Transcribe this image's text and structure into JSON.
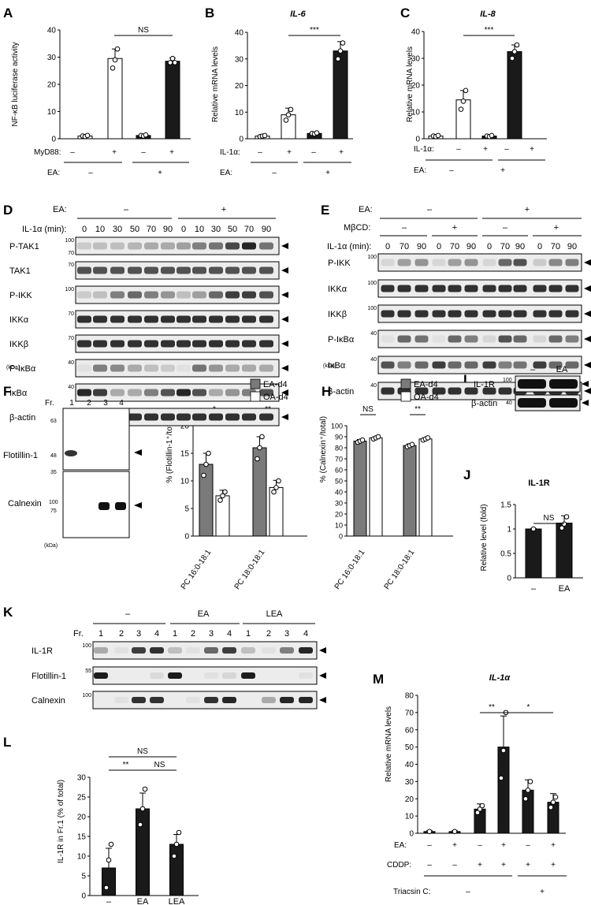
{
  "panelA": {
    "letter": "A",
    "ylabel": "NF-κB luciferase activity",
    "yticks": [
      "0",
      "10",
      "20",
      "30",
      "40"
    ],
    "sig": "NS",
    "row1_label": "MyD88:",
    "row1": [
      "–",
      "+",
      "–",
      "+"
    ],
    "row2_label": "EA:",
    "row2": [
      "–",
      "+"
    ]
  },
  "panelB": {
    "letter": "B",
    "title": "IL-6",
    "ylabel": "Relative mRNA levels",
    "yticks": [
      "0",
      "10",
      "20",
      "30",
      "40"
    ],
    "sig": "***",
    "row1_label": "IL-1α:",
    "row1": [
      "–",
      "+",
      "–",
      "+"
    ],
    "row2_label": "EA:",
    "row2": [
      "–",
      "+"
    ]
  },
  "panelC": {
    "letter": "C",
    "title": "IL-8",
    "ylabel": "Relative mRNA levels",
    "yticks": [
      "0",
      "10",
      "20",
      "30",
      "40"
    ],
    "sig": "***",
    "row1_label": "IL-1α:",
    "row1": [
      "–",
      "+",
      "–",
      "+"
    ],
    "row2_label": "EA:",
    "row2": [
      "–",
      "+"
    ]
  },
  "panelD": {
    "letter": "D",
    "ea_label": "EA:",
    "ea_groups": [
      "–",
      "+"
    ],
    "time_label": "IL-1α (min):",
    "times": [
      "0",
      "10",
      "30",
      "50",
      "70",
      "90",
      "0",
      "10",
      "30",
      "50",
      "70",
      "90"
    ],
    "rows": [
      "P-TAK1",
      "TAK1",
      "P-IKK",
      "IKKα",
      "IKKβ",
      "P-IκBα",
      "IκBα",
      "β-actin"
    ],
    "markers": [
      [
        "100",
        "70"
      ],
      [
        "70"
      ],
      [
        "100"
      ],
      [
        "70"
      ],
      [
        "70"
      ],
      [
        "40"
      ],
      [
        "40"
      ],
      [
        "40"
      ]
    ],
    "kda": "(kDa)"
  },
  "panelE": {
    "letter": "E",
    "ea_label": "EA:",
    "ea_groups": [
      "–",
      "+"
    ],
    "mbcd_label": "MβCD:",
    "mbcd_groups": [
      "–",
      "+",
      "–",
      "+"
    ],
    "time_label": "IL-1α (min):",
    "times": [
      "0",
      "70",
      "90",
      "0",
      "70",
      "90",
      "0",
      "70",
      "90",
      "0",
      "70",
      "90"
    ],
    "rows": [
      "P-IKK",
      "IKKα",
      "IKKβ",
      "P-IκBα",
      "IκBα",
      "β-actin"
    ],
    "markers": [
      [
        "100"
      ],
      [
        "100"
      ],
      [
        "100"
      ],
      [
        "40"
      ],
      [
        "40"
      ],
      [
        "40"
      ]
    ],
    "kda": "(kDa)"
  },
  "panelF": {
    "letter": "F",
    "fr_label": "Fr.",
    "fractions": [
      "1",
      "2",
      "3",
      "4"
    ],
    "rows": [
      "Flotillin-1",
      "Calnexin"
    ],
    "markers_top": [
      "63",
      "48",
      "35"
    ],
    "markers_bottom": [
      "100",
      "75"
    ],
    "kda": "(kDa)"
  },
  "panelG": {
    "letter": "G",
    "ylabel": "% (Flotillin-1⁺/total)",
    "yticks": [
      "0",
      "5",
      "10",
      "15",
      "20"
    ],
    "legend": [
      "EA-d4",
      "OA-d4"
    ],
    "categories": [
      "PC 16:0-18:1",
      "PC 18:0-18:1"
    ],
    "sigs": [
      "*",
      "**"
    ]
  },
  "panelH": {
    "letter": "H",
    "ylabel": "% (Calnexin⁺/total)",
    "yticks": [
      "0",
      "10",
      "20",
      "30",
      "40",
      "50",
      "60",
      "70",
      "80",
      "90",
      "100"
    ],
    "legend": [
      "EA-d4",
      "OA-d4"
    ],
    "categories": [
      "PC 16:0-18:1",
      "PC 18:0-18:1"
    ],
    "sigs": [
      "NS",
      "**"
    ]
  },
  "panelI": {
    "letter": "I",
    "lanes": [
      "–",
      "EA"
    ],
    "rows": [
      "IL-1R",
      "β-actin"
    ],
    "markers": [
      "100",
      "40"
    ]
  },
  "panelJ": {
    "letter": "J",
    "title": "IL-1R",
    "ylabel": "Relative level (fold)",
    "yticks": [
      "0",
      "0.5",
      "1",
      "1.5"
    ],
    "categories": [
      "–",
      "EA"
    ],
    "sig": "NS"
  },
  "panelK": {
    "letter": "K",
    "groups": [
      "–",
      "EA",
      "LEA"
    ],
    "fr_label": "Fr.",
    "fractions": [
      "1",
      "2",
      "3",
      "4",
      "1",
      "2",
      "3",
      "4",
      "1",
      "2",
      "3",
      "4"
    ],
    "rows": [
      "IL-1R",
      "Flotillin-1",
      "Calnexin"
    ],
    "markers": [
      "100",
      "55",
      "100"
    ]
  },
  "panelL": {
    "letter": "L",
    "ylabel": "IL-1R in Fr.1 (% of total)",
    "yticks": [
      "0",
      "5",
      "10",
      "15",
      "20",
      "25",
      "30"
    ],
    "categories": [
      "–",
      "EA",
      "LEA"
    ],
    "sigs": [
      "**",
      "NS",
      "NS"
    ]
  },
  "panelM": {
    "letter": "M",
    "title": "IL-1α",
    "ylabel": "Relative mRNA levels",
    "yticks": [
      "0",
      "10",
      "20",
      "30",
      "40",
      "50",
      "60",
      "70",
      "80"
    ],
    "sigs": [
      "**",
      "*"
    ],
    "row1_label": "EA:",
    "row1": [
      "–",
      "+",
      "–",
      "+",
      "–",
      "+"
    ],
    "row2_label": "CDDP:",
    "row2": [
      "–",
      "–",
      "+",
      "+",
      "+",
      "+"
    ],
    "row3_label": "Triacsin C:",
    "row3": [
      "–",
      "+"
    ]
  },
  "chart_data": [
    {
      "id": "A",
      "type": "bar",
      "ylim": [
        0,
        40
      ],
      "categories": [
        "1",
        "2",
        "3",
        "4"
      ],
      "values": [
        1,
        29.5,
        1.2,
        28.5
      ],
      "fills": [
        "#ffffff",
        "#ffffff",
        "#1a1a1a",
        "#1a1a1a"
      ],
      "errors": [
        0.3,
        3.5,
        0.3,
        1.2
      ]
    },
    {
      "id": "B",
      "type": "bar",
      "ylim": [
        0,
        40
      ],
      "categories": [
        "1",
        "2",
        "3",
        "4"
      ],
      "values": [
        1,
        9,
        2,
        33
      ],
      "fills": [
        "#ffffff",
        "#ffffff",
        "#1a1a1a",
        "#1a1a1a"
      ],
      "errors": [
        0.5,
        2.5,
        0.5,
        3.5
      ]
    },
    {
      "id": "C",
      "type": "bar",
      "ylim": [
        0,
        40
      ],
      "categories": [
        "1",
        "2",
        "3",
        "4"
      ],
      "values": [
        1,
        14.5,
        1,
        32.5
      ],
      "fills": [
        "#ffffff",
        "#ffffff",
        "#1a1a1a",
        "#1a1a1a"
      ],
      "errors": [
        0.5,
        3.5,
        0.4,
        2.5
      ]
    },
    {
      "id": "G",
      "type": "bar",
      "ylim": [
        0,
        20
      ],
      "categories": [
        "PC 16:0-18:1",
        "PC 18:0-18:1"
      ],
      "series": [
        {
          "name": "EA-d4",
          "values": [
            13,
            16
          ],
          "errors": [
            2,
            2
          ]
        },
        {
          "name": "OA-d4",
          "values": [
            7.3,
            8.8
          ],
          "errors": [
            1,
            1.3
          ]
        }
      ]
    },
    {
      "id": "H",
      "type": "bar",
      "ylim": [
        0,
        100
      ],
      "categories": [
        "PC 16:0-18:1",
        "PC 18:0-18:1"
      ],
      "series": [
        {
          "name": "EA-d4",
          "values": [
            86,
            82
          ],
          "errors": [
            1.5,
            1.5
          ]
        },
        {
          "name": "OA-d4",
          "values": [
            89,
            88
          ],
          "errors": [
            1,
            1
          ]
        }
      ]
    },
    {
      "id": "J",
      "type": "bar",
      "ylim": [
        0,
        1.5
      ],
      "categories": [
        "–",
        "EA"
      ],
      "values": [
        1,
        1.12
      ],
      "errors": [
        0.01,
        0.15
      ]
    },
    {
      "id": "L",
      "type": "bar",
      "ylim": [
        0,
        30
      ],
      "categories": [
        "–",
        "EA",
        "LEA"
      ],
      "values": [
        7,
        22,
        13
      ],
      "errors": [
        5,
        4,
        2.5
      ]
    },
    {
      "id": "M",
      "type": "bar",
      "ylim": [
        0,
        80
      ],
      "categories": [
        "1",
        "2",
        "3",
        "4",
        "5",
        "6"
      ],
      "values": [
        1,
        1,
        14,
        50,
        25,
        18
      ],
      "errors": [
        0.5,
        0.5,
        3,
        18,
        6,
        5
      ]
    }
  ]
}
